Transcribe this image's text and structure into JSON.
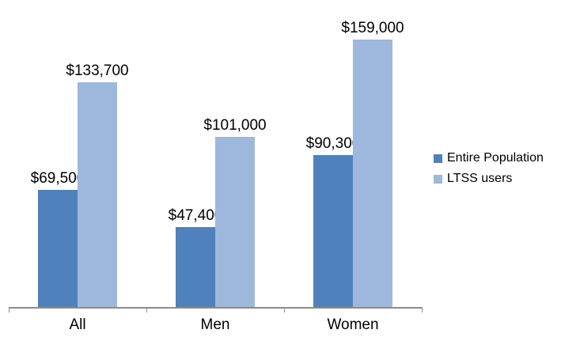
{
  "chart_data": {
    "type": "bar",
    "categories": [
      "All",
      "Men",
      "Women"
    ],
    "series": [
      {
        "name": "Entire Population",
        "color": "#4F81BD",
        "values": [
          69500,
          47400,
          90300
        ],
        "labels": [
          "$69,500",
          "$47,400",
          "$90,300"
        ]
      },
      {
        "name": "LTSS users",
        "color": "#9DB8DC",
        "values": [
          133700,
          101000,
          159000
        ],
        "labels": [
          "$133,700",
          "$101,000",
          "$159,000"
        ]
      }
    ],
    "title": "",
    "xlabel": "",
    "ylabel": "",
    "ylim": [
      0,
      165000
    ],
    "grid": false,
    "legend_position": "right",
    "axis_color": "#8C8C8C",
    "text_color": "#000000",
    "background_color": "#FFFFFF"
  }
}
